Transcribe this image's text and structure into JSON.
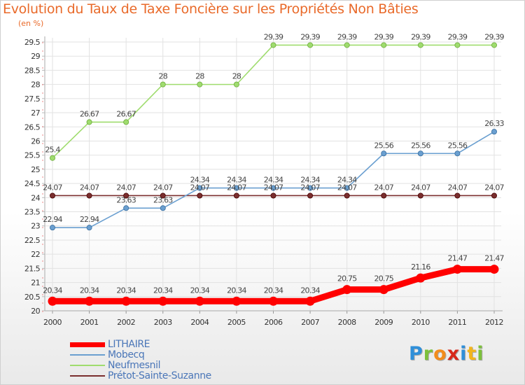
{
  "chart_data": {
    "type": "line",
    "title": "Evolution du Taux de Taxe Foncière sur les Propriétés Non Bâties",
    "ylabel": "(en %)",
    "xlabel": "",
    "x": [
      "2000",
      "2001",
      "2002",
      "2003",
      "2004",
      "2005",
      "2006",
      "2007",
      "2008",
      "2009",
      "2010",
      "2011",
      "2012"
    ],
    "ylim": [
      20,
      29.5
    ],
    "yticks": [
      "20",
      "20.5",
      "21",
      "21.5",
      "22",
      "22.5",
      "23",
      "23.5",
      "24",
      "24.5",
      "25",
      "25.5",
      "26",
      "26.5",
      "27",
      "27.5",
      "28",
      "28.5",
      "29",
      "29.5"
    ],
    "grid": true,
    "legend": "bottom-left",
    "series": [
      {
        "name": "LITHAIRE",
        "color": "#ff0000",
        "values": [
          20.34,
          20.34,
          20.34,
          20.34,
          20.34,
          20.34,
          20.34,
          20.34,
          20.75,
          20.75,
          21.16,
          21.47,
          21.47
        ],
        "labels": [
          "20.34",
          "20.34",
          "20.34",
          "20.34",
          "20.34",
          "20.34",
          "20.34",
          "20.34",
          "20.75",
          "20.75",
          "21.16",
          "21.47",
          "21.47"
        ]
      },
      {
        "name": "Mobecq",
        "color": "#6a9fd0",
        "values": [
          22.94,
          22.94,
          23.63,
          23.63,
          24.34,
          24.34,
          24.34,
          24.34,
          24.34,
          25.56,
          25.56,
          25.56,
          26.33
        ],
        "labels": [
          "22.94",
          "22.94",
          "23.63",
          "23.63",
          "24.34",
          "24.34",
          "24.34",
          "24.34",
          "24.34",
          "25.56",
          "25.56",
          "25.56",
          "26.33"
        ]
      },
      {
        "name": "Neufmesnil",
        "color": "#9fdc6e",
        "values": [
          25.4,
          26.67,
          26.67,
          28,
          28,
          28,
          29.39,
          29.39,
          29.39,
          29.39,
          29.39,
          29.39,
          29.39
        ],
        "labels": [
          "25.4",
          "26.67",
          "26.67",
          "28",
          "28",
          "28",
          "29.39",
          "29.39",
          "29.39",
          "29.39",
          "29.39",
          "29.39",
          "29.39"
        ]
      },
      {
        "name": "Prétot-Sainte-Suzanne",
        "color": "#7a2e2e",
        "values": [
          24.07,
          24.07,
          24.07,
          24.07,
          24.07,
          24.07,
          24.07,
          24.07,
          24.07,
          24.07,
          24.07,
          24.07,
          24.07
        ],
        "labels": [
          "24.07",
          "24.07",
          "24.07",
          "24.07",
          "24.07",
          "24.07",
          "24.07",
          "24.07",
          "24.07",
          "24.07",
          "24.07",
          "24.07",
          "24.07"
        ]
      }
    ]
  },
  "logo": {
    "letters": [
      "P",
      "r",
      "o",
      "x",
      "i",
      "t",
      "i"
    ],
    "colors": [
      "#2f8fd9",
      "#7cc03b",
      "#f28c1c",
      "#d7281a",
      "#2f8fd9",
      "#f2b51c",
      "#7cc03b"
    ]
  }
}
